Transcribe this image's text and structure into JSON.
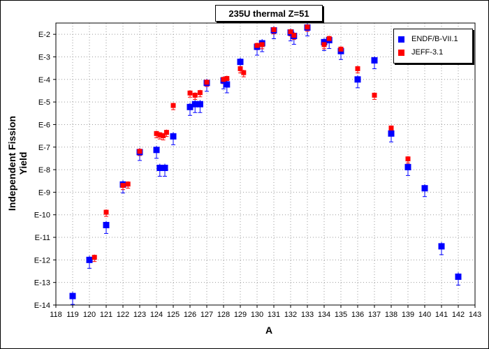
{
  "chart_data": {
    "type": "scatter",
    "title": "235U thermal Z=51",
    "xlabel": "A",
    "ylabel": "Independent Fission Yield",
    "xlim": [
      118,
      143
    ],
    "ylim_log10": [
      -14,
      -1.5
    ],
    "y_scale": "log",
    "grid": true,
    "legend_position": "top-right",
    "x_ticks": [
      "118",
      "119",
      "120",
      "121",
      "122",
      "123",
      "124",
      "125",
      "126",
      "127",
      "128",
      "129",
      "130",
      "131",
      "132",
      "133",
      "134",
      "135",
      "136",
      "137",
      "138",
      "139",
      "140",
      "141",
      "142",
      "143"
    ],
    "y_ticks": [
      "E-2",
      "E-3",
      "E-4",
      "E-5",
      "E-6",
      "E-7",
      "E-8",
      "E-9",
      "E-10",
      "E-11",
      "E-12",
      "E-13",
      "E-14"
    ],
    "series": [
      {
        "name": "ENDF/B-VII.1",
        "color": "#0000ff",
        "points": [
          {
            "x": 119,
            "y": 2.5e-14
          },
          {
            "x": 120,
            "y": 1e-12
          },
          {
            "x": 121,
            "y": 3.5e-11
          },
          {
            "x": 122,
            "y": 2.2e-09
          },
          {
            "x": 123,
            "y": 6e-08
          },
          {
            "x": 124,
            "y": 7.5e-08
          },
          {
            "x": 124.2,
            "y": 1.2e-08
          },
          {
            "x": 124.5,
            "y": 1.2e-08
          },
          {
            "x": 125,
            "y": 3e-07
          },
          {
            "x": 126,
            "y": 6e-06
          },
          {
            "x": 126.3,
            "y": 8e-06
          },
          {
            "x": 126.6,
            "y": 8e-06
          },
          {
            "x": 127,
            "y": 7e-05
          },
          {
            "x": 128,
            "y": 9e-05
          },
          {
            "x": 128.2,
            "y": 6e-05
          },
          {
            "x": 129,
            "y": 0.0006
          },
          {
            "x": 130,
            "y": 0.0028
          },
          {
            "x": 130.3,
            "y": 0.004
          },
          {
            "x": 131,
            "y": 0.015
          },
          {
            "x": 132,
            "y": 0.012
          },
          {
            "x": 132.2,
            "y": 0.0085
          },
          {
            "x": 133,
            "y": 0.02
          },
          {
            "x": 134,
            "y": 0.0045
          },
          {
            "x": 134.3,
            "y": 0.0055
          },
          {
            "x": 135,
            "y": 0.0018
          },
          {
            "x": 136,
            "y": 0.0001
          },
          {
            "x": 137,
            "y": 0.0007
          },
          {
            "x": 138,
            "y": 4e-07
          },
          {
            "x": 139,
            "y": 1.3e-08
          },
          {
            "x": 140,
            "y": 1.5e-09
          },
          {
            "x": 141,
            "y": 4e-12
          },
          {
            "x": 142,
            "y": 1.8e-13
          }
        ]
      },
      {
        "name": "JEFF-3.1",
        "color": "#ff0000",
        "points": [
          {
            "x": 120.3,
            "y": 1.3e-12
          },
          {
            "x": 121,
            "y": 1.3e-10
          },
          {
            "x": 122,
            "y": 2e-09
          },
          {
            "x": 122.3,
            "y": 2.3e-09
          },
          {
            "x": 123,
            "y": 6.5e-08
          },
          {
            "x": 124,
            "y": 4e-07
          },
          {
            "x": 124.2,
            "y": 3.5e-07
          },
          {
            "x": 124.4,
            "y": 3.2e-07
          },
          {
            "x": 124.6,
            "y": 4.5e-07
          },
          {
            "x": 125,
            "y": 7e-06
          },
          {
            "x": 126,
            "y": 2.5e-05
          },
          {
            "x": 126.3,
            "y": 2e-05
          },
          {
            "x": 126.6,
            "y": 2.6e-05
          },
          {
            "x": 127,
            "y": 7.5e-05
          },
          {
            "x": 128,
            "y": 0.0001
          },
          {
            "x": 128.2,
            "y": 0.00011
          },
          {
            "x": 129,
            "y": 0.0003
          },
          {
            "x": 129.2,
            "y": 0.0002
          },
          {
            "x": 130,
            "y": 0.0032
          },
          {
            "x": 130.3,
            "y": 0.0035
          },
          {
            "x": 131,
            "y": 0.016
          },
          {
            "x": 132,
            "y": 0.013
          },
          {
            "x": 132.2,
            "y": 0.009
          },
          {
            "x": 133,
            "y": 0.021
          },
          {
            "x": 134,
            "y": 0.0035
          },
          {
            "x": 134.3,
            "y": 0.0065
          },
          {
            "x": 135,
            "y": 0.0022
          },
          {
            "x": 136,
            "y": 0.0003
          },
          {
            "x": 137,
            "y": 2e-05
          },
          {
            "x": 138,
            "y": 7e-07
          },
          {
            "x": 139,
            "y": 3e-08
          }
        ]
      }
    ]
  }
}
